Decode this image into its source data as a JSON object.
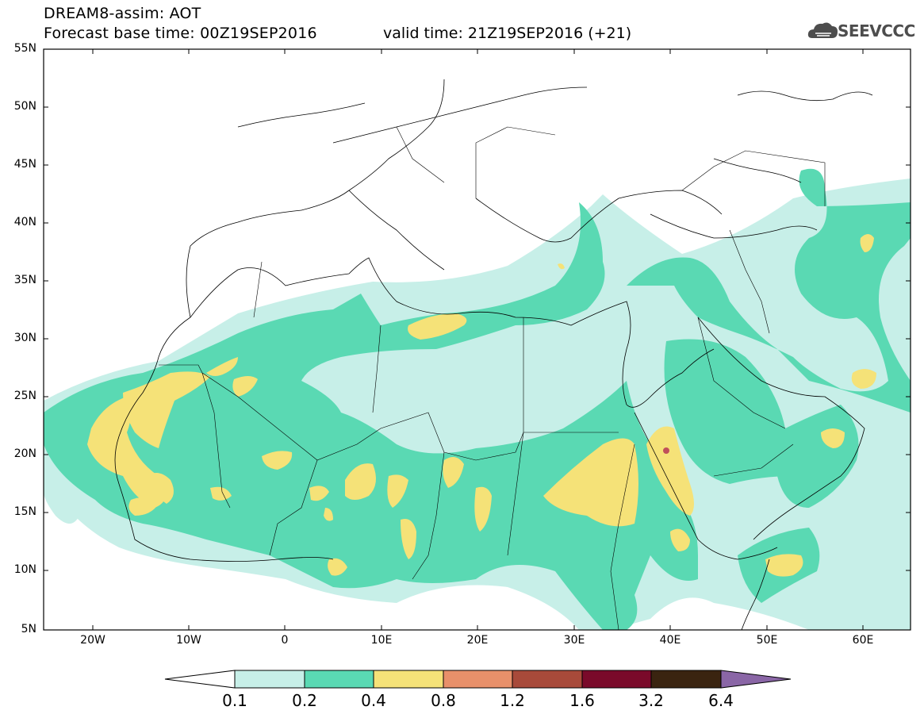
{
  "header": {
    "title": "DREAM8-assim: AOT",
    "base_time": "Forecast base time: 00Z19SEP2016",
    "valid_time": "valid time: 21Z19SEP2016 (+21)",
    "logo_text": "SEEVCCC"
  },
  "axes": {
    "lat_labels": [
      "55N",
      "50N",
      "45N",
      "40N",
      "35N",
      "30N",
      "25N",
      "20N",
      "15N",
      "10N",
      "5N"
    ],
    "lon_labels": [
      "20W",
      "10W",
      "0",
      "10E",
      "20E",
      "30E",
      "40E",
      "50E",
      "60E"
    ]
  },
  "colorbar": {
    "labels": [
      "0.1",
      "0.2",
      "0.4",
      "0.8",
      "1.2",
      "1.6",
      "3.2",
      "6.4"
    ],
    "colors": [
      "#ffffff",
      "#c7efe8",
      "#5ad9b3",
      "#f5e278",
      "#e8906a",
      "#a84a3a",
      "#7a0a2a",
      "#3a2410",
      "#8a66a6"
    ]
  },
  "map_colors": {
    "level1": "#c7efe8",
    "level2": "#5ad9b3",
    "level3": "#f5e278",
    "level4": "#c0505a"
  }
}
